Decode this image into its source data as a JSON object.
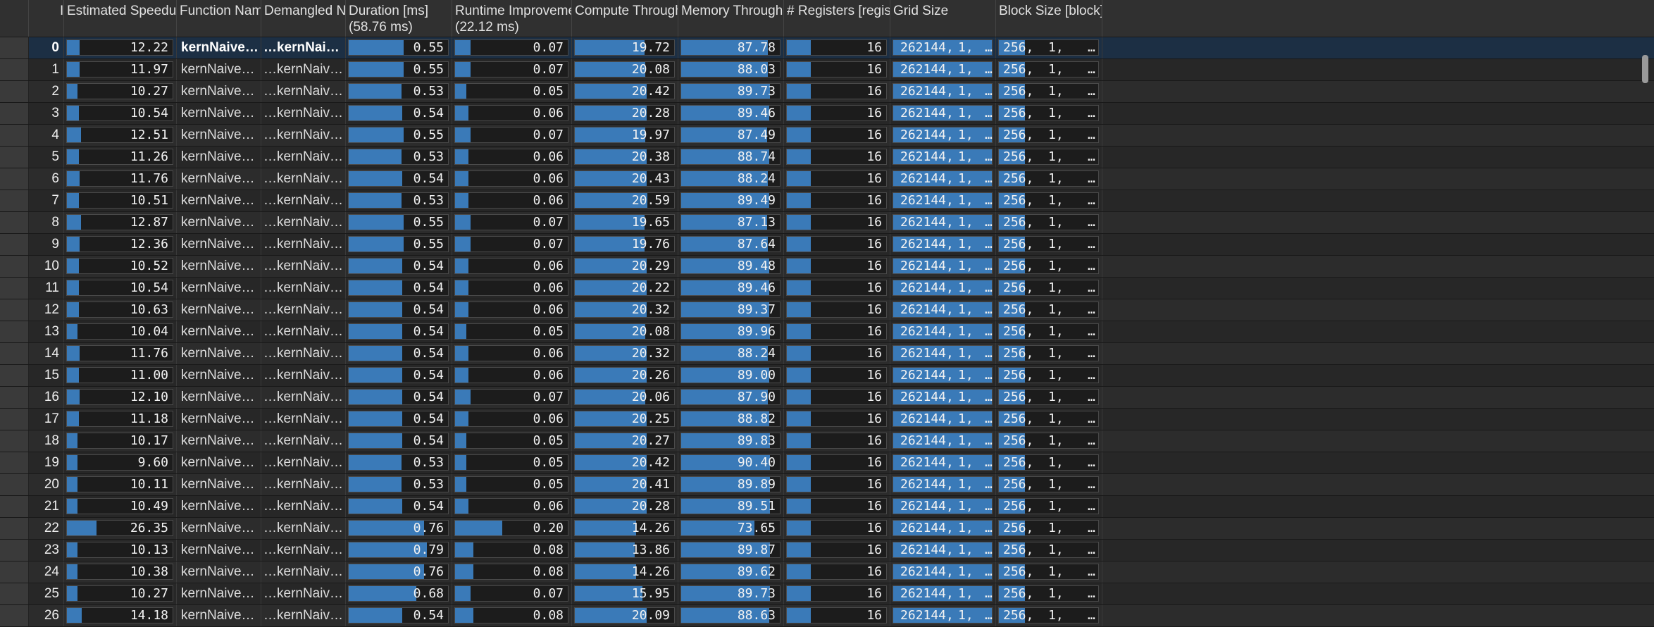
{
  "table": {
    "columns": [
      {
        "key": "id",
        "label": "ID",
        "line2": ""
      },
      {
        "key": "speedup",
        "label": "Estimated Speedup [%]",
        "line2": ""
      },
      {
        "key": "func",
        "label": "Function Name",
        "line2": ""
      },
      {
        "key": "demangled",
        "label": "Demangled Name",
        "line2": ""
      },
      {
        "key": "duration",
        "label": "Duration [ms]",
        "line2": "(58.76 ms)"
      },
      {
        "key": "runtime",
        "label": "Runtime Improvement [ms]",
        "line2": "(22.12 ms)"
      },
      {
        "key": "compute",
        "label": "Compute Throughput [%]",
        "line2": ""
      },
      {
        "key": "memory",
        "label": "Memory Throughput [%]",
        "line2": ""
      },
      {
        "key": "registers",
        "label": "# Registers [register/thread]",
        "line2": ""
      },
      {
        "key": "grid",
        "label": "Grid Size",
        "line2": ""
      },
      {
        "key": "block",
        "label": "Block Size [block]",
        "line2": ""
      }
    ],
    "sort_icon": "sort-ascending-icon",
    "accent_color": "#3a7ab8",
    "rows": [
      {
        "id": "0",
        "speedup": "12.22",
        "speedup_frac": 0.12,
        "func": "kernNaiveScanIter…",
        "demangled": "…kernNaiveScanIte…",
        "duration": "0.55",
        "duration_frac": 0.55,
        "runtime": "0.07",
        "runtime_frac": 0.14,
        "compute": "19.72",
        "compute_frac": 0.7,
        "memory": "87.78",
        "memory_frac": 0.88,
        "registers": "16",
        "grid": [
          "262144,",
          "1,",
          "…"
        ],
        "block": [
          "256,",
          "1,",
          "…"
        ]
      },
      {
        "id": "1",
        "speedup": "11.97",
        "speedup_frac": 0.12,
        "func": "kernNaiveScanItera…",
        "demangled": "…kernNaiveScanIter…",
        "duration": "0.55",
        "duration_frac": 0.55,
        "runtime": "0.07",
        "runtime_frac": 0.14,
        "compute": "20.08",
        "compute_frac": 0.71,
        "memory": "88.03",
        "memory_frac": 0.88,
        "registers": "16",
        "grid": [
          "262144,",
          "1,",
          "…"
        ],
        "block": [
          "256,",
          "1,",
          "…"
        ]
      },
      {
        "id": "2",
        "speedup": "10.27",
        "speedup_frac": 0.1,
        "func": "kernNaiveScanItera…",
        "demangled": "…kernNaiveScanIter…",
        "duration": "0.53",
        "duration_frac": 0.53,
        "runtime": "0.05",
        "runtime_frac": 0.1,
        "compute": "20.42",
        "compute_frac": 0.72,
        "memory": "89.73",
        "memory_frac": 0.9,
        "registers": "16",
        "grid": [
          "262144,",
          "1,",
          "…"
        ],
        "block": [
          "256,",
          "1,",
          "…"
        ]
      },
      {
        "id": "3",
        "speedup": "10.54",
        "speedup_frac": 0.11,
        "func": "kernNaiveScanItera…",
        "demangled": "…kernNaiveScanIter…",
        "duration": "0.54",
        "duration_frac": 0.54,
        "runtime": "0.06",
        "runtime_frac": 0.12,
        "compute": "20.28",
        "compute_frac": 0.72,
        "memory": "89.46",
        "memory_frac": 0.89,
        "registers": "16",
        "grid": [
          "262144,",
          "1,",
          "…"
        ],
        "block": [
          "256,",
          "1,",
          "…"
        ]
      },
      {
        "id": "4",
        "speedup": "12.51",
        "speedup_frac": 0.13,
        "func": "kernNaiveScanItera…",
        "demangled": "…kernNaiveScanIter…",
        "duration": "0.55",
        "duration_frac": 0.55,
        "runtime": "0.07",
        "runtime_frac": 0.14,
        "compute": "19.97",
        "compute_frac": 0.71,
        "memory": "87.49",
        "memory_frac": 0.87,
        "registers": "16",
        "grid": [
          "262144,",
          "1,",
          "…"
        ],
        "block": [
          "256,",
          "1,",
          "…"
        ]
      },
      {
        "id": "5",
        "speedup": "11.26",
        "speedup_frac": 0.11,
        "func": "kernNaiveScanItera…",
        "demangled": "…kernNaiveScanIter…",
        "duration": "0.53",
        "duration_frac": 0.53,
        "runtime": "0.06",
        "runtime_frac": 0.12,
        "compute": "20.38",
        "compute_frac": 0.72,
        "memory": "88.74",
        "memory_frac": 0.89,
        "registers": "16",
        "grid": [
          "262144,",
          "1,",
          "…"
        ],
        "block": [
          "256,",
          "1,",
          "…"
        ]
      },
      {
        "id": "6",
        "speedup": "11.76",
        "speedup_frac": 0.12,
        "func": "kernNaiveScanItera…",
        "demangled": "…kernNaiveScanIter…",
        "duration": "0.54",
        "duration_frac": 0.54,
        "runtime": "0.06",
        "runtime_frac": 0.12,
        "compute": "20.43",
        "compute_frac": 0.72,
        "memory": "88.24",
        "memory_frac": 0.88,
        "registers": "16",
        "grid": [
          "262144,",
          "1,",
          "…"
        ],
        "block": [
          "256,",
          "1,",
          "…"
        ]
      },
      {
        "id": "7",
        "speedup": "10.51",
        "speedup_frac": 0.11,
        "func": "kernNaiveScanItera…",
        "demangled": "…kernNaiveScanIter…",
        "duration": "0.53",
        "duration_frac": 0.53,
        "runtime": "0.06",
        "runtime_frac": 0.12,
        "compute": "20.59",
        "compute_frac": 0.73,
        "memory": "89.49",
        "memory_frac": 0.89,
        "registers": "16",
        "grid": [
          "262144,",
          "1,",
          "…"
        ],
        "block": [
          "256,",
          "1,",
          "…"
        ]
      },
      {
        "id": "8",
        "speedup": "12.87",
        "speedup_frac": 0.13,
        "func": "kernNaiveScanItera…",
        "demangled": "…kernNaiveScanIter…",
        "duration": "0.55",
        "duration_frac": 0.55,
        "runtime": "0.07",
        "runtime_frac": 0.14,
        "compute": "19.65",
        "compute_frac": 0.7,
        "memory": "87.13",
        "memory_frac": 0.87,
        "registers": "16",
        "grid": [
          "262144,",
          "1,",
          "…"
        ],
        "block": [
          "256,",
          "1,",
          "…"
        ]
      },
      {
        "id": "9",
        "speedup": "12.36",
        "speedup_frac": 0.12,
        "func": "kernNaiveScanItera…",
        "demangled": "…kernNaiveScanIter…",
        "duration": "0.55",
        "duration_frac": 0.55,
        "runtime": "0.07",
        "runtime_frac": 0.14,
        "compute": "19.76",
        "compute_frac": 0.7,
        "memory": "87.64",
        "memory_frac": 0.88,
        "registers": "16",
        "grid": [
          "262144,",
          "1,",
          "…"
        ],
        "block": [
          "256,",
          "1,",
          "…"
        ]
      },
      {
        "id": "10",
        "speedup": "10.52",
        "speedup_frac": 0.11,
        "func": "kernNaiveScanItera…",
        "demangled": "…kernNaiveScanIter…",
        "duration": "0.54",
        "duration_frac": 0.54,
        "runtime": "0.06",
        "runtime_frac": 0.12,
        "compute": "20.29",
        "compute_frac": 0.72,
        "memory": "89.48",
        "memory_frac": 0.89,
        "registers": "16",
        "grid": [
          "262144,",
          "1,",
          "…"
        ],
        "block": [
          "256,",
          "1,",
          "…"
        ]
      },
      {
        "id": "11",
        "speedup": "10.54",
        "speedup_frac": 0.11,
        "func": "kernNaiveScanItera…",
        "demangled": "…kernNaiveScanIter…",
        "duration": "0.54",
        "duration_frac": 0.54,
        "runtime": "0.06",
        "runtime_frac": 0.12,
        "compute": "20.22",
        "compute_frac": 0.72,
        "memory": "89.46",
        "memory_frac": 0.89,
        "registers": "16",
        "grid": [
          "262144,",
          "1,",
          "…"
        ],
        "block": [
          "256,",
          "1,",
          "…"
        ]
      },
      {
        "id": "12",
        "speedup": "10.63",
        "speedup_frac": 0.11,
        "func": "kernNaiveScanItera…",
        "demangled": "…kernNaiveScanIter…",
        "duration": "0.54",
        "duration_frac": 0.54,
        "runtime": "0.06",
        "runtime_frac": 0.12,
        "compute": "20.32",
        "compute_frac": 0.72,
        "memory": "89.37",
        "memory_frac": 0.89,
        "registers": "16",
        "grid": [
          "262144,",
          "1,",
          "…"
        ],
        "block": [
          "256,",
          "1,",
          "…"
        ]
      },
      {
        "id": "13",
        "speedup": "10.04",
        "speedup_frac": 0.1,
        "func": "kernNaiveScanItera…",
        "demangled": "…kernNaiveScanIter…",
        "duration": "0.54",
        "duration_frac": 0.54,
        "runtime": "0.05",
        "runtime_frac": 0.1,
        "compute": "20.08",
        "compute_frac": 0.71,
        "memory": "89.96",
        "memory_frac": 0.9,
        "registers": "16",
        "grid": [
          "262144,",
          "1,",
          "…"
        ],
        "block": [
          "256,",
          "1,",
          "…"
        ]
      },
      {
        "id": "14",
        "speedup": "11.76",
        "speedup_frac": 0.12,
        "func": "kernNaiveScanItera…",
        "demangled": "…kernNaiveScanIter…",
        "duration": "0.54",
        "duration_frac": 0.54,
        "runtime": "0.06",
        "runtime_frac": 0.12,
        "compute": "20.32",
        "compute_frac": 0.72,
        "memory": "88.24",
        "memory_frac": 0.88,
        "registers": "16",
        "grid": [
          "262144,",
          "1,",
          "…"
        ],
        "block": [
          "256,",
          "1,",
          "…"
        ]
      },
      {
        "id": "15",
        "speedup": "11.00",
        "speedup_frac": 0.11,
        "func": "kernNaiveScanItera…",
        "demangled": "…kernNaiveScanIter…",
        "duration": "0.54",
        "duration_frac": 0.54,
        "runtime": "0.06",
        "runtime_frac": 0.12,
        "compute": "20.26",
        "compute_frac": 0.72,
        "memory": "89.00",
        "memory_frac": 0.89,
        "registers": "16",
        "grid": [
          "262144,",
          "1,",
          "…"
        ],
        "block": [
          "256,",
          "1,",
          "…"
        ]
      },
      {
        "id": "16",
        "speedup": "12.10",
        "speedup_frac": 0.12,
        "func": "kernNaiveScanItera…",
        "demangled": "…kernNaiveScanIter…",
        "duration": "0.54",
        "duration_frac": 0.54,
        "runtime": "0.07",
        "runtime_frac": 0.14,
        "compute": "20.06",
        "compute_frac": 0.71,
        "memory": "87.90",
        "memory_frac": 0.88,
        "registers": "16",
        "grid": [
          "262144,",
          "1,",
          "…"
        ],
        "block": [
          "256,",
          "1,",
          "…"
        ]
      },
      {
        "id": "17",
        "speedup": "11.18",
        "speedup_frac": 0.11,
        "func": "kernNaiveScanItera…",
        "demangled": "…kernNaiveScanIter…",
        "duration": "0.54",
        "duration_frac": 0.54,
        "runtime": "0.06",
        "runtime_frac": 0.12,
        "compute": "20.25",
        "compute_frac": 0.72,
        "memory": "88.82",
        "memory_frac": 0.89,
        "registers": "16",
        "grid": [
          "262144,",
          "1,",
          "…"
        ],
        "block": [
          "256,",
          "1,",
          "…"
        ]
      },
      {
        "id": "18",
        "speedup": "10.17",
        "speedup_frac": 0.1,
        "func": "kernNaiveScanItera…",
        "demangled": "…kernNaiveScanIter…",
        "duration": "0.54",
        "duration_frac": 0.54,
        "runtime": "0.05",
        "runtime_frac": 0.1,
        "compute": "20.27",
        "compute_frac": 0.72,
        "memory": "89.83",
        "memory_frac": 0.9,
        "registers": "16",
        "grid": [
          "262144,",
          "1,",
          "…"
        ],
        "block": [
          "256,",
          "1,",
          "…"
        ]
      },
      {
        "id": "19",
        "speedup": "9.60",
        "speedup_frac": 0.1,
        "func": "kernNaiveScanItera…",
        "demangled": "…kernNaiveScanIter…",
        "duration": "0.53",
        "duration_frac": 0.53,
        "runtime": "0.05",
        "runtime_frac": 0.1,
        "compute": "20.42",
        "compute_frac": 0.72,
        "memory": "90.40",
        "memory_frac": 0.9,
        "registers": "16",
        "grid": [
          "262144,",
          "1,",
          "…"
        ],
        "block": [
          "256,",
          "1,",
          "…"
        ]
      },
      {
        "id": "20",
        "speedup": "10.11",
        "speedup_frac": 0.1,
        "func": "kernNaiveScanItera…",
        "demangled": "…kernNaiveScanIter…",
        "duration": "0.53",
        "duration_frac": 0.53,
        "runtime": "0.05",
        "runtime_frac": 0.1,
        "compute": "20.41",
        "compute_frac": 0.72,
        "memory": "89.89",
        "memory_frac": 0.9,
        "registers": "16",
        "grid": [
          "262144,",
          "1,",
          "…"
        ],
        "block": [
          "256,",
          "1,",
          "…"
        ]
      },
      {
        "id": "21",
        "speedup": "10.49",
        "speedup_frac": 0.1,
        "func": "kernNaiveScanItera…",
        "demangled": "…kernNaiveScanIter…",
        "duration": "0.54",
        "duration_frac": 0.54,
        "runtime": "0.06",
        "runtime_frac": 0.12,
        "compute": "20.28",
        "compute_frac": 0.72,
        "memory": "89.51",
        "memory_frac": 0.9,
        "registers": "16",
        "grid": [
          "262144,",
          "1,",
          "…"
        ],
        "block": [
          "256,",
          "1,",
          "…"
        ]
      },
      {
        "id": "22",
        "speedup": "26.35",
        "speedup_frac": 0.28,
        "func": "kernNaiveScanIter…",
        "demangled": "…kernNaiveScanIter…",
        "duration": "0.76",
        "duration_frac": 0.76,
        "runtime": "0.20",
        "runtime_frac": 0.42,
        "compute": "14.26",
        "compute_frac": 0.62,
        "memory": "73.65",
        "memory_frac": 0.74,
        "registers": "16",
        "grid": [
          "262144,",
          "1,",
          "…"
        ],
        "block": [
          "256,",
          "1,",
          "…"
        ]
      },
      {
        "id": "23",
        "speedup": "10.13",
        "speedup_frac": 0.1,
        "func": "kernNaiveScanItera…",
        "demangled": "…kernNaiveScanIter…",
        "duration": "0.79",
        "duration_frac": 0.79,
        "runtime": "0.08",
        "runtime_frac": 0.16,
        "compute": "13.86",
        "compute_frac": 0.6,
        "memory": "89.87",
        "memory_frac": 0.9,
        "registers": "16",
        "grid": [
          "262144,",
          "1,",
          "…"
        ],
        "block": [
          "256,",
          "1,",
          "…"
        ]
      },
      {
        "id": "24",
        "speedup": "10.38",
        "speedup_frac": 0.1,
        "func": "kernNaiveScanItera…",
        "demangled": "…kernNaiveScanIter…",
        "duration": "0.76",
        "duration_frac": 0.76,
        "runtime": "0.08",
        "runtime_frac": 0.16,
        "compute": "14.26",
        "compute_frac": 0.62,
        "memory": "89.62",
        "memory_frac": 0.9,
        "registers": "16",
        "grid": [
          "262144,",
          "1,",
          "…"
        ],
        "block": [
          "256,",
          "1,",
          "…"
        ]
      },
      {
        "id": "25",
        "speedup": "10.27",
        "speedup_frac": 0.1,
        "func": "kernNaiveScanItera…",
        "demangled": "…kernNaiveScanIter…",
        "duration": "0.68",
        "duration_frac": 0.68,
        "runtime": "0.07",
        "runtime_frac": 0.14,
        "compute": "15.95",
        "compute_frac": 0.68,
        "memory": "89.73",
        "memory_frac": 0.9,
        "registers": "16",
        "grid": [
          "262144,",
          "1,",
          "…"
        ],
        "block": [
          "256,",
          "1,",
          "…"
        ]
      },
      {
        "id": "26",
        "speedup": "14.18",
        "speedup_frac": 0.14,
        "func": "kernNaiveScanShift",
        "demangled": "…kernNaiveScanShi…",
        "duration": "0.54",
        "duration_frac": 0.54,
        "runtime": "0.08",
        "runtime_frac": 0.16,
        "compute": "20.09",
        "compute_frac": 0.72,
        "memory": "88.63",
        "memory_frac": 0.89,
        "registers": "16",
        "grid": [
          "262144,",
          "1,",
          "…"
        ],
        "block": [
          "256,",
          "1,",
          "…"
        ]
      }
    ]
  }
}
